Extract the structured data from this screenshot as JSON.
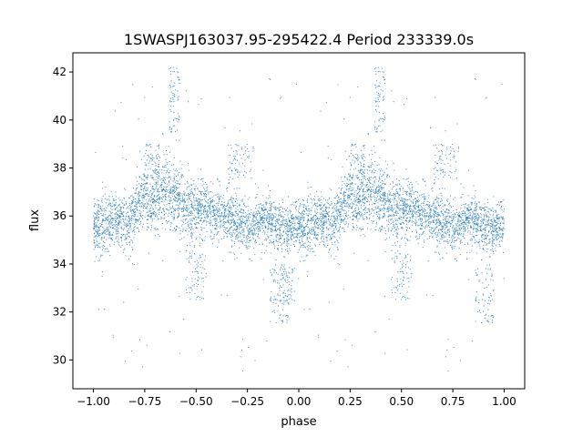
{
  "chart_data": {
    "type": "scatter",
    "title": "1SWASPJ163037.95-295422.4 Period 233339.0s",
    "xlabel": "phase",
    "ylabel": "flux",
    "xlim": [
      -1.1,
      1.1
    ],
    "ylim": [
      28.8,
      42.8
    ],
    "xticks": [
      -1.0,
      -0.75,
      -0.5,
      -0.25,
      0.0,
      0.25,
      0.5,
      0.75,
      1.0
    ],
    "xtick_labels": [
      "−1.00",
      "−0.75",
      "−0.50",
      "−0.25",
      "0.00",
      "0.25",
      "0.50",
      "0.75",
      "1.00"
    ],
    "yticks": [
      30,
      32,
      34,
      36,
      38,
      40,
      42
    ],
    "ytick_labels": [
      "30",
      "32",
      "34",
      "36",
      "38",
      "40",
      "42"
    ],
    "marker_color": "#1f77b4",
    "grid": false,
    "series": [
      {
        "phase_profile": {
          "x": [
            0.0,
            0.04,
            0.08,
            0.12,
            0.16,
            0.2,
            0.24,
            0.28,
            0.32,
            0.36,
            0.4,
            0.44,
            0.48,
            0.52,
            0.56,
            0.6,
            0.64,
            0.68,
            0.72,
            0.76,
            0.8,
            0.84,
            0.88,
            0.92,
            0.96,
            1.0
          ],
          "y_center": [
            35.6,
            35.5,
            35.6,
            35.9,
            35.7,
            36.1,
            36.8,
            36.3,
            36.9,
            37.0,
            36.8,
            36.4,
            36.2,
            36.3,
            36.2,
            36.0,
            36.1,
            35.8,
            35.7,
            35.5,
            35.8,
            35.9,
            35.7,
            35.5,
            35.5,
            35.6
          ],
          "y_spread": [
            0.9,
            1.2,
            1.0,
            0.9,
            1.0,
            1.1,
            1.1,
            1.0,
            1.2,
            1.3,
            1.2,
            1.1,
            1.0,
            1.0,
            1.0,
            0.9,
            1.0,
            1.0,
            0.9,
            0.9,
            0.9,
            0.9,
            0.8,
            0.8,
            0.8,
            0.9
          ]
        },
        "features": [
          {
            "x": [
              0.37,
              0.42
            ],
            "y": [
              39.5,
              42.2
            ]
          },
          {
            "x": [
              0.25,
              0.32
            ],
            "y": [
              37.5,
              39.0
            ]
          },
          {
            "x": [
              0.65,
              0.78
            ],
            "y": [
              37.5,
              39.0
            ]
          },
          {
            "x": [
              0.86,
              0.95
            ],
            "y": [
              31.5,
              34.0
            ]
          },
          {
            "x": [
              0.45,
              0.55
            ],
            "y": [
              32.5,
              34.5
            ]
          },
          {
            "x": [
              -0.12,
              -0.02
            ],
            "y": [
              32.3,
              34.0
            ]
          }
        ],
        "points_per_unit_phase": 3000
      }
    ]
  }
}
